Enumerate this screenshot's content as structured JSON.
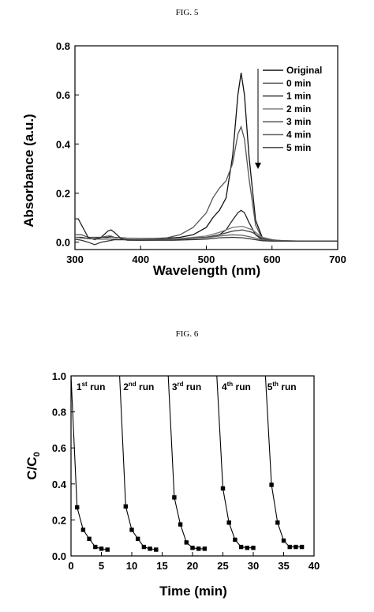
{
  "fig5": {
    "label": "FIG. 5",
    "chart_data": {
      "type": "line",
      "xlabel": "Wavelength (nm)",
      "ylabel": "Absorbance (a.u.)",
      "xlim": [
        300,
        700
      ],
      "ylim": [
        -0.03,
        0.8
      ],
      "xticks": [
        "300",
        "400",
        "500",
        "600",
        "700"
      ],
      "yticks": [
        "0.0",
        "0.2",
        "0.4",
        "0.6",
        "0.8"
      ],
      "legend_position": "top-right",
      "grid": false,
      "series": [
        {
          "name": "Original",
          "x": [
            300,
            310,
            320,
            330,
            340,
            350,
            355,
            360,
            370,
            380,
            400,
            420,
            440,
            460,
            480,
            500,
            510,
            520,
            530,
            540,
            548,
            553,
            558,
            565,
            575,
            585,
            600,
            620,
            650,
            700
          ],
          "y": [
            0.02,
            0.02,
            0.015,
            0.015,
            0.02,
            0.02,
            0.022,
            0.02,
            0.018,
            0.016,
            0.015,
            0.015,
            0.016,
            0.02,
            0.03,
            0.06,
            0.1,
            0.13,
            0.18,
            0.35,
            0.6,
            0.69,
            0.6,
            0.35,
            0.09,
            0.02,
            0.01,
            0.005,
            0.004,
            0.004
          ]
        },
        {
          "name": "0 min",
          "x": [
            300,
            310,
            320,
            330,
            340,
            350,
            355,
            360,
            370,
            380,
            400,
            420,
            440,
            460,
            480,
            500,
            510,
            520,
            530,
            540,
            548,
            553,
            558,
            565,
            575,
            585,
            600,
            620,
            650,
            700
          ],
          "y": [
            0.03,
            0.03,
            0.02,
            0.02,
            0.02,
            0.025,
            0.025,
            0.02,
            0.018,
            0.016,
            0.015,
            0.015,
            0.018,
            0.03,
            0.06,
            0.12,
            0.18,
            0.22,
            0.25,
            0.32,
            0.44,
            0.47,
            0.42,
            0.26,
            0.07,
            0.015,
            0.008,
            0.005,
            0.004,
            0.004
          ]
        },
        {
          "name": "1 min",
          "x": [
            300,
            305,
            310,
            320,
            330,
            340,
            350,
            355,
            360,
            370,
            380,
            400,
            450,
            500,
            520,
            530,
            540,
            548,
            553,
            558,
            565,
            575,
            585,
            600,
            650,
            700
          ],
          "y": [
            0.095,
            0.095,
            0.07,
            0.02,
            0.01,
            0.02,
            0.045,
            0.05,
            0.04,
            0.015,
            0.008,
            0.008,
            0.01,
            0.02,
            0.03,
            0.05,
            0.09,
            0.12,
            0.13,
            0.12,
            0.08,
            0.03,
            0.01,
            0.005,
            0.004,
            0.004
          ]
        },
        {
          "name": "2 min",
          "x": [
            300,
            320,
            340,
            360,
            380,
            400,
            450,
            500,
            520,
            540,
            555,
            570,
            585,
            600,
            650,
            700
          ],
          "y": [
            0.02,
            0.015,
            0.012,
            0.012,
            0.01,
            0.01,
            0.012,
            0.025,
            0.04,
            0.06,
            0.065,
            0.05,
            0.02,
            0.008,
            0.004,
            0.004
          ]
        },
        {
          "name": "3 min",
          "x": [
            300,
            320,
            340,
            360,
            380,
            400,
            450,
            500,
            520,
            540,
            555,
            570,
            585,
            600,
            650,
            700
          ],
          "y": [
            0.02,
            0.015,
            0.012,
            0.012,
            0.01,
            0.01,
            0.012,
            0.02,
            0.03,
            0.045,
            0.05,
            0.04,
            0.015,
            0.006,
            0.004,
            0.004
          ]
        },
        {
          "name": "4 min",
          "x": [
            300,
            320,
            340,
            360,
            380,
            400,
            450,
            500,
            520,
            540,
            555,
            570,
            585,
            600,
            650,
            700
          ],
          "y": [
            0.02,
            0.014,
            0.012,
            0.012,
            0.01,
            0.01,
            0.012,
            0.018,
            0.025,
            0.03,
            0.028,
            0.02,
            0.01,
            0.005,
            0.004,
            0.004
          ]
        },
        {
          "name": "5 min",
          "x": [
            300,
            310,
            320,
            330,
            340,
            360,
            380,
            400,
            450,
            500,
            520,
            540,
            555,
            570,
            585,
            600,
            650,
            700
          ],
          "y": [
            0.012,
            0.008,
            0.0,
            -0.01,
            0.0,
            0.01,
            0.01,
            0.008,
            0.008,
            0.012,
            0.018,
            0.02,
            0.018,
            0.012,
            0.006,
            0.004,
            0.004,
            0.004
          ]
        }
      ]
    }
  },
  "fig6": {
    "label": "FIG. 6",
    "chart_data": {
      "type": "line",
      "xlabel": "Time (min)",
      "ylabel": "C/C",
      "ylabel_sub": "0",
      "xlim": [
        0,
        40
      ],
      "ylim": [
        0,
        1.0
      ],
      "xticks": [
        "0",
        "5",
        "10",
        "15",
        "20",
        "25",
        "30",
        "35",
        "40"
      ],
      "yticks": [
        "0.0",
        "0.2",
        "0.4",
        "0.6",
        "0.8",
        "1.0"
      ],
      "grid": false,
      "annotations": [
        {
          "base": "1",
          "sup": "st",
          "text": "run",
          "x": 0.9,
          "y": 0.92
        },
        {
          "base": "2",
          "sup": "nd",
          "text": "run",
          "x": 8.6,
          "y": 0.92
        },
        {
          "base": "3",
          "sup": "rd",
          "text": "run",
          "x": 16.6,
          "y": 0.92
        },
        {
          "base": "4",
          "sup": "th",
          "text": "run",
          "x": 24.8,
          "y": 0.92
        },
        {
          "base": "5",
          "sup": "th",
          "text": "run",
          "x": 32.3,
          "y": 0.92
        }
      ],
      "series": [
        {
          "name": "1st run",
          "x": [
            0,
            1,
            2,
            3,
            4,
            5,
            6
          ],
          "y": [
            1.0,
            0.27,
            0.145,
            0.095,
            0.05,
            0.04,
            0.035
          ]
        },
        {
          "name": "2nd run",
          "x": [
            8,
            9,
            10,
            11,
            12,
            13,
            14
          ],
          "y": [
            1.0,
            0.275,
            0.145,
            0.095,
            0.05,
            0.04,
            0.035
          ]
        },
        {
          "name": "3rd run",
          "x": [
            16,
            17,
            18,
            19,
            20,
            21,
            22
          ],
          "y": [
            1.0,
            0.325,
            0.175,
            0.075,
            0.045,
            0.04,
            0.04
          ]
        },
        {
          "name": "4th run",
          "x": [
            24,
            25,
            26,
            27,
            28,
            29,
            30
          ],
          "y": [
            1.0,
            0.375,
            0.185,
            0.09,
            0.05,
            0.045,
            0.045
          ]
        },
        {
          "name": "5th run",
          "x": [
            32,
            33,
            34,
            35,
            36,
            37,
            38
          ],
          "y": [
            1.0,
            0.395,
            0.185,
            0.085,
            0.05,
            0.05,
            0.05
          ]
        }
      ]
    }
  }
}
